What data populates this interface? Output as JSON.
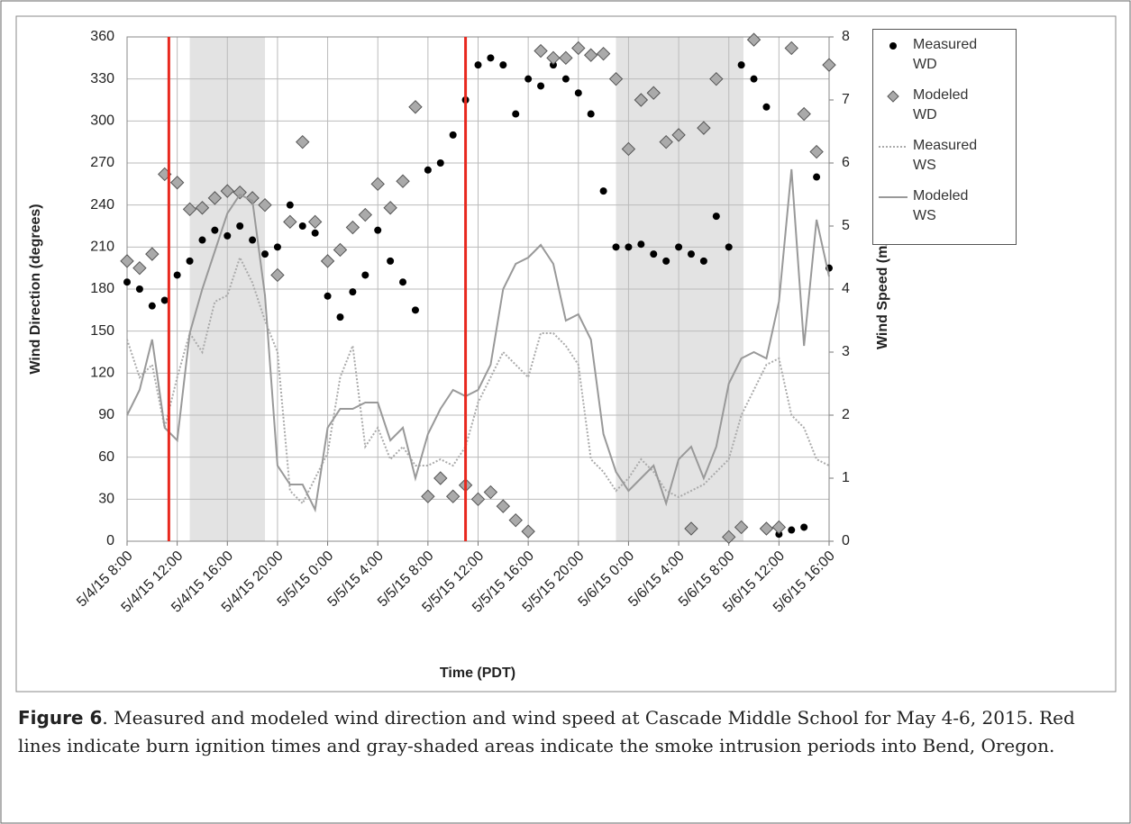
{
  "chart_data": {
    "type": "scatter-line",
    "x_label": "Time (PDT)",
    "y_label": "Wind Direction (degrees)",
    "y2_label": "Wind Speed (m/s)",
    "xlim": [
      "5/4/15 8:00",
      "5/6/15 16:00"
    ],
    "xticks": [
      "5/4/15 8:00",
      "5/4/15 12:00",
      "5/4/15 16:00",
      "5/4/15 20:00",
      "5/5/15 0:00",
      "5/5/15 4:00",
      "5/5/15 8:00",
      "5/5/15 12:00",
      "5/5/15 16:00",
      "5/5/15 20:00",
      "5/6/15 0:00",
      "5/6/15 4:00",
      "5/6/15 8:00",
      "5/6/15 12:00",
      "5/6/15 16:00"
    ],
    "ylim": [
      0,
      360
    ],
    "yticks": [
      0,
      30,
      60,
      90,
      120,
      150,
      180,
      210,
      240,
      270,
      300,
      330,
      360
    ],
    "y2lim": [
      0,
      8
    ],
    "y2ticks": [
      0,
      1,
      2,
      3,
      4,
      5,
      6,
      7,
      8
    ],
    "grid": true,
    "legend": "right",
    "ignition_times": [
      "5/4/15 11:20",
      "5/5/15 11:00"
    ],
    "ignition_color": "#e8281e",
    "smoke_periods": [
      [
        "5/4/15 13:00",
        "5/4/15 19:00"
      ],
      [
        "5/5/15 23:00",
        "5/6/15 9:10"
      ]
    ],
    "smoke_color": "#e3e3e3",
    "x": [
      "5/4/15 8:00",
      "5/4/15 9:00",
      "5/4/15 10:00",
      "5/4/15 11:00",
      "5/4/15 12:00",
      "5/4/15 13:00",
      "5/4/15 14:00",
      "5/4/15 15:00",
      "5/4/15 16:00",
      "5/4/15 17:00",
      "5/4/15 18:00",
      "5/4/15 19:00",
      "5/4/15 20:00",
      "5/4/15 21:00",
      "5/4/15 22:00",
      "5/4/15 23:00",
      "5/5/15 0:00",
      "5/5/15 1:00",
      "5/5/15 2:00",
      "5/5/15 3:00",
      "5/5/15 4:00",
      "5/5/15 5:00",
      "5/5/15 6:00",
      "5/5/15 7:00",
      "5/5/15 8:00",
      "5/5/15 9:00",
      "5/5/15 10:00",
      "5/5/15 11:00",
      "5/5/15 12:00",
      "5/5/15 13:00",
      "5/5/15 14:00",
      "5/5/15 15:00",
      "5/5/15 16:00",
      "5/5/15 17:00",
      "5/5/15 18:00",
      "5/5/15 19:00",
      "5/5/15 20:00",
      "5/5/15 21:00",
      "5/5/15 22:00",
      "5/5/15 23:00",
      "5/6/15 0:00",
      "5/6/15 1:00",
      "5/6/15 2:00",
      "5/6/15 3:00",
      "5/6/15 4:00",
      "5/6/15 5:00",
      "5/6/15 6:00",
      "5/6/15 7:00",
      "5/6/15 8:00",
      "5/6/15 9:00",
      "5/6/15 10:00",
      "5/6/15 11:00",
      "5/6/15 12:00",
      "5/6/15 13:00",
      "5/6/15 14:00",
      "5/6/15 15:00",
      "5/6/15 16:00"
    ],
    "series": [
      {
        "name": "Measured WD",
        "style": "dot",
        "color": "#000000",
        "axis": "y",
        "values": [
          185,
          180,
          168,
          172,
          190,
          200,
          215,
          222,
          218,
          225,
          215,
          205,
          210,
          240,
          225,
          220,
          175,
          160,
          178,
          190,
          222,
          200,
          185,
          165,
          265,
          270,
          290,
          315,
          340,
          345,
          340,
          305,
          330,
          325,
          340,
          330,
          320,
          305,
          250,
          210,
          210,
          212,
          205,
          200,
          210,
          205,
          200,
          232,
          210,
          340,
          330,
          310,
          5,
          8,
          10,
          260,
          195
        ]
      },
      {
        "name": "Modeled WD",
        "style": "diamond",
        "color": "#aaaaaa",
        "axis": "y",
        "values": [
          200,
          195,
          205,
          262,
          256,
          237,
          238,
          245,
          250,
          249,
          245,
          240,
          190,
          228,
          285,
          228,
          200,
          208,
          224,
          233,
          255,
          238,
          257,
          310,
          32,
          45,
          32,
          40,
          30,
          35,
          25,
          15,
          7,
          350,
          345,
          345,
          352,
          347,
          348,
          330,
          280,
          315,
          320,
          285,
          290,
          9,
          295,
          330,
          3,
          10,
          358,
          9,
          10,
          352,
          305,
          278,
          340
        ]
      },
      {
        "name": "Measured WS",
        "style": "dotted",
        "color": "#aaaaaa",
        "axis": "y2",
        "values": [
          3.2,
          2.6,
          2.8,
          1.8,
          2.6,
          3.3,
          3.0,
          3.8,
          3.9,
          4.5,
          4.1,
          3.5,
          3.0,
          0.8,
          0.6,
          1.0,
          1.4,
          2.6,
          3.1,
          1.5,
          1.8,
          1.3,
          1.5,
          1.2,
          1.2,
          1.3,
          1.2,
          1.5,
          2.2,
          2.6,
          3.0,
          2.8,
          2.6,
          3.3,
          3.3,
          3.1,
          2.8,
          1.3,
          1.1,
          0.8,
          1.0,
          1.3,
          1.1,
          0.8,
          0.7,
          0.8,
          0.9,
          1.1,
          1.3,
          2.0,
          2.4,
          2.8,
          2.9,
          2.0,
          1.8,
          1.3,
          1.2
        ]
      },
      {
        "name": "Modeled WS",
        "style": "solid",
        "color": "#999999",
        "axis": "y2",
        "values": [
          2.0,
          2.4,
          3.2,
          1.8,
          1.6,
          3.3,
          4.0,
          4.6,
          5.2,
          5.5,
          5.4,
          3.9,
          1.2,
          0.9,
          0.9,
          0.5,
          1.8,
          2.1,
          2.1,
          2.2,
          2.2,
          1.6,
          1.8,
          1.0,
          1.7,
          2.1,
          2.4,
          2.3,
          2.4,
          2.8,
          4.0,
          4.4,
          4.5,
          4.7,
          4.4,
          3.5,
          3.6,
          3.2,
          1.7,
          1.1,
          0.8,
          1.0,
          1.2,
          0.6,
          1.3,
          1.5,
          1.0,
          1.5,
          2.5,
          2.9,
          3.0,
          2.9,
          3.8,
          5.9,
          3.1,
          5.1,
          4.2
        ]
      }
    ]
  },
  "caption": {
    "label": "Figure 6",
    "text": ". Measured and modeled wind direction and wind speed at Cascade Middle School for May 4-6, 2015. Red lines indicate burn ignition times and gray-shaded areas indicate the smoke intrusion periods into Bend, Oregon."
  }
}
